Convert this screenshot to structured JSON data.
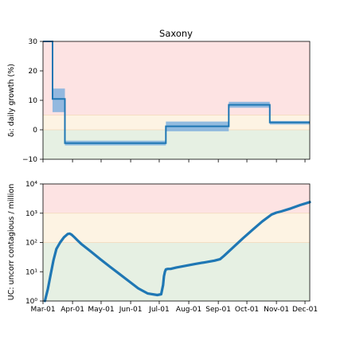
{
  "colors": {
    "zone_red": "#fde3e3",
    "zone_orange": "#fdf3e3",
    "zone_green": "#e6f0e3",
    "line": "#1f77b4",
    "band": "#7fb0de"
  },
  "chart_data": [
    {
      "type": "line",
      "title": "Saxony",
      "ylabel": "δᵢ: daily growth (%)",
      "ylim": [
        -10,
        30
      ],
      "yticks": [
        -10,
        0,
        10,
        20,
        30
      ],
      "ytick_labels": [
        "−10",
        "0",
        "10",
        "20",
        "30"
      ],
      "xlim": [
        0,
        280
      ],
      "zones": [
        {
          "name": "red",
          "from": 5,
          "to": 30
        },
        {
          "name": "orange",
          "from": 0,
          "to": 5
        },
        {
          "name": "green",
          "from": -10,
          "to": 0
        }
      ],
      "segments": [
        {
          "x0": 0,
          "x1": 10,
          "value": 30,
          "low": 30,
          "high": 30
        },
        {
          "x0": 10,
          "x1": 23,
          "value": 10.5,
          "low": 6,
          "high": 14
        },
        {
          "x0": 23,
          "x1": 129,
          "value": -4.5,
          "low": -5.3,
          "high": -3.7
        },
        {
          "x0": 129,
          "x1": 195,
          "value": 1.2,
          "low": -0.5,
          "high": 2.8
        },
        {
          "x0": 195,
          "x1": 238,
          "value": 8.5,
          "low": 7.5,
          "high": 9.5
        },
        {
          "x0": 238,
          "x1": 280,
          "value": 2.5,
          "low": 1.8,
          "high": 3.0
        }
      ]
    },
    {
      "type": "line",
      "ylabel": "UC: uncorr contagious / million",
      "yscale": "log",
      "ylim": [
        1,
        10000
      ],
      "yticks": [
        1,
        10,
        100,
        1000,
        10000
      ],
      "ytick_labels": [
        "10⁰",
        "10¹",
        "10²",
        "10³",
        "10⁴"
      ],
      "xlim": [
        0,
        280
      ],
      "x_ticks": [
        {
          "x": 0,
          "label": "Mar-01"
        },
        {
          "x": 31,
          "label": "Apr-01"
        },
        {
          "x": 61,
          "label": "May-01"
        },
        {
          "x": 92,
          "label": "Jun-01"
        },
        {
          "x": 122,
          "label": "Jul-01"
        },
        {
          "x": 153,
          "label": "Aug-01"
        },
        {
          "x": 184,
          "label": "Sep-01"
        },
        {
          "x": 214,
          "label": "Oct-01"
        },
        {
          "x": 245,
          "label": "Nov-01"
        },
        {
          "x": 275,
          "label": "Dec-01"
        }
      ],
      "zones": [
        {
          "name": "red",
          "from": 1000,
          "to": 10000
        },
        {
          "name": "orange",
          "from": 100,
          "to": 1000
        },
        {
          "name": "green",
          "from": 1,
          "to": 100
        }
      ],
      "x": [
        2,
        5,
        8,
        11,
        14,
        18,
        22,
        26,
        28,
        30,
        33,
        36,
        40,
        50,
        60,
        70,
        80,
        90,
        100,
        110,
        120,
        124,
        126,
        127,
        128,
        129,
        131,
        134,
        140,
        150,
        160,
        170,
        180,
        186,
        190,
        200,
        210,
        220,
        230,
        240,
        245,
        250,
        260,
        270,
        280
      ],
      "y": [
        1.0,
        2.5,
        8,
        25,
        60,
        100,
        150,
        195,
        200,
        185,
        150,
        120,
        90,
        50,
        27,
        15,
        8.5,
        4.8,
        2.7,
        1.8,
        1.6,
        1.7,
        3.5,
        7,
        10,
        12,
        12.5,
        12.5,
        14,
        16,
        18.5,
        21,
        24,
        27,
        35,
        70,
        140,
        270,
        520,
        900,
        1050,
        1150,
        1450,
        1900,
        2400
      ]
    }
  ]
}
